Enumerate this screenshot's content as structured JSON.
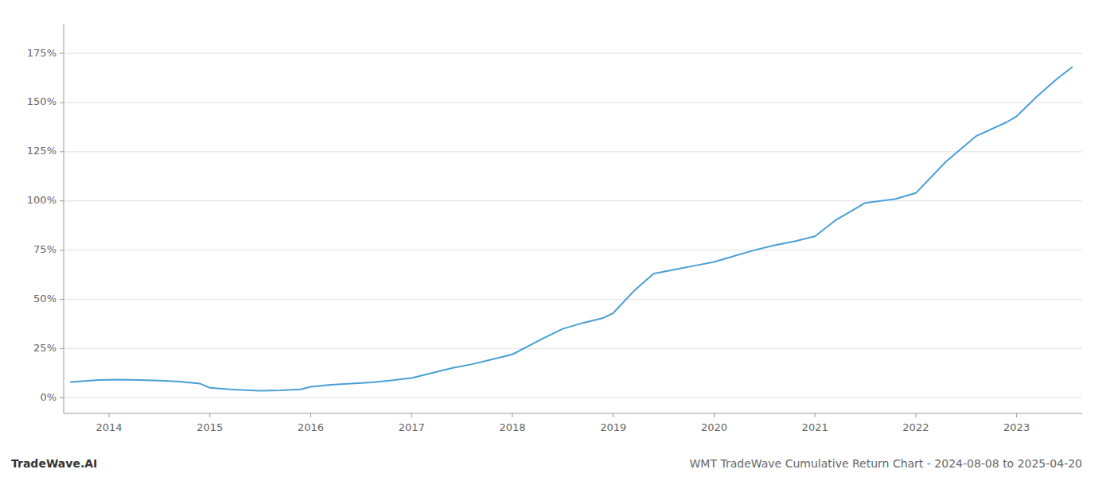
{
  "chart_data": {
    "type": "line",
    "title": "WMT TradeWave Cumulative Return Chart - 2024-08-08 to 2025-04-20",
    "annotations": [
      "TradeWave.AI"
    ],
    "color": "#4a9fd4",
    "x": [
      2013.62,
      2013.9,
      2014.1,
      2014.3,
      2014.5,
      2014.7,
      2014.9,
      2015.0,
      2015.2,
      2015.35,
      2015.5,
      2015.7,
      2015.9,
      2016.0,
      2016.2,
      2016.4,
      2016.6,
      2016.8,
      2017.0,
      2017.2,
      2017.4,
      2017.6,
      2017.8,
      2018.0,
      2018.15,
      2018.3,
      2018.5,
      2018.7,
      2018.9,
      2019.0,
      2019.2,
      2019.4,
      2019.6,
      2019.8,
      2020.0,
      2020.2,
      2020.4,
      2020.6,
      2020.8,
      2021.0,
      2021.2,
      2021.5,
      2021.8,
      2022.0,
      2022.3,
      2022.6,
      2022.9,
      2023.0,
      2023.2,
      2023.4,
      2023.55
    ],
    "values": [
      8.0,
      9.0,
      9.2,
      9.0,
      8.7,
      8.2,
      7.2,
      5.0,
      4.2,
      3.8,
      3.5,
      3.7,
      4.2,
      5.5,
      6.5,
      7.2,
      7.8,
      8.8,
      10.0,
      12.5,
      15.0,
      17.0,
      19.5,
      22.0,
      26.0,
      30.0,
      35.0,
      38.0,
      40.5,
      43.0,
      54.0,
      63.0,
      65.0,
      67.0,
      69.0,
      72.0,
      75.0,
      77.5,
      79.5,
      82.0,
      90.0,
      99.0,
      101.0,
      104.0,
      120.0,
      133.0,
      140.0,
      143.0,
      153.0,
      162.0,
      168.0
    ],
    "xlim": [
      2013.55,
      2023.65
    ],
    "xticks": [
      2014,
      2015,
      2016,
      2017,
      2018,
      2019,
      2020,
      2021,
      2022,
      2023
    ],
    "ylim": [
      -8,
      190
    ],
    "yticks": [
      {
        "value": 0,
        "label": "0%"
      },
      {
        "value": 25,
        "label": "25%"
      },
      {
        "value": 50,
        "label": "50%"
      },
      {
        "value": 75,
        "label": "75%"
      },
      {
        "value": 100,
        "label": "100%"
      },
      {
        "value": 125,
        "label": "125%"
      },
      {
        "value": 150,
        "label": "150%"
      },
      {
        "value": 175,
        "label": "175%"
      }
    ],
    "grid": "y"
  }
}
